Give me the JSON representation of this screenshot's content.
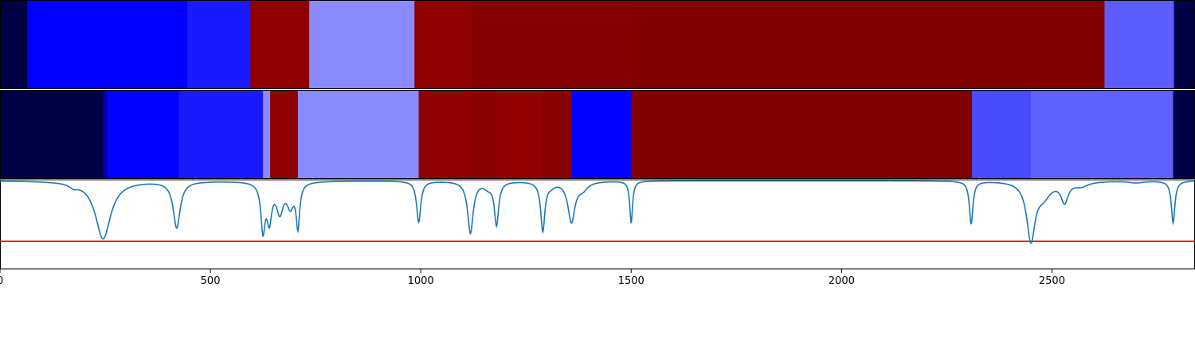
{
  "chart_data": [
    {
      "type": "heatmap",
      "panel": "top-band",
      "xlim": [
        0,
        2840
      ],
      "segments": [
        {
          "start": 0,
          "end": 65,
          "color": "#000044"
        },
        {
          "start": 65,
          "end": 445,
          "color": "#0000ff"
        },
        {
          "start": 445,
          "end": 595,
          "color": "#1a1aff"
        },
        {
          "start": 595,
          "end": 735,
          "color": "#8f0000"
        },
        {
          "start": 735,
          "end": 985,
          "color": "#8a8aff"
        },
        {
          "start": 985,
          "end": 1120,
          "color": "#8f0000"
        },
        {
          "start": 1120,
          "end": 1500,
          "color": "#850000"
        },
        {
          "start": 1500,
          "end": 2625,
          "color": "#800000"
        },
        {
          "start": 2625,
          "end": 2790,
          "color": "#5c5cff"
        },
        {
          "start": 2790,
          "end": 2840,
          "color": "#000044"
        }
      ]
    },
    {
      "type": "heatmap",
      "panel": "middle-band",
      "xlim": [
        0,
        2840
      ],
      "segments": [
        {
          "start": 0,
          "end": 245,
          "color": "#000044"
        },
        {
          "start": 245,
          "end": 255,
          "color": "#0000aa"
        },
        {
          "start": 255,
          "end": 425,
          "color": "#0000ff"
        },
        {
          "start": 425,
          "end": 625,
          "color": "#1a1aff"
        },
        {
          "start": 625,
          "end": 642,
          "color": "#8a8aff"
        },
        {
          "start": 642,
          "end": 708,
          "color": "#8f0000"
        },
        {
          "start": 708,
          "end": 995,
          "color": "#8a8aff"
        },
        {
          "start": 995,
          "end": 1118,
          "color": "#8f0000"
        },
        {
          "start": 1118,
          "end": 1180,
          "color": "#880000"
        },
        {
          "start": 1180,
          "end": 1290,
          "color": "#930000"
        },
        {
          "start": 1290,
          "end": 1358,
          "color": "#880000"
        },
        {
          "start": 1358,
          "end": 1500,
          "color": "#0000ff"
        },
        {
          "start": 1500,
          "end": 2310,
          "color": "#800000"
        },
        {
          "start": 2310,
          "end": 2450,
          "color": "#4a4aff"
        },
        {
          "start": 2450,
          "end": 2788,
          "color": "#6060ff"
        },
        {
          "start": 2788,
          "end": 2840,
          "color": "#000044"
        }
      ]
    },
    {
      "type": "line",
      "panel": "bottom-plot",
      "xlim": [
        0,
        2840
      ],
      "ylim": [
        0,
        1
      ],
      "xticks": [
        0,
        500,
        1000,
        1500,
        2000,
        2500
      ],
      "xtick_labels": [
        "0",
        "500",
        "1000",
        "1500",
        "2000",
        "2500"
      ],
      "baseline": 0.99,
      "threshold": {
        "value": 0.31,
        "color": "#e8000b"
      },
      "series_color": "#1f77b4",
      "dips": [
        {
          "center": 245,
          "depth": 0.65,
          "width": 22
        },
        {
          "center": 175,
          "depth": 0.04,
          "width": 12
        },
        {
          "center": 420,
          "depth": 0.52,
          "width": 10
        },
        {
          "center": 625,
          "depth": 0.52,
          "width": 6
        },
        {
          "center": 640,
          "depth": 0.4,
          "width": 7
        },
        {
          "center": 665,
          "depth": 0.32,
          "width": 10
        },
        {
          "center": 690,
          "depth": 0.25,
          "width": 10
        },
        {
          "center": 708,
          "depth": 0.48,
          "width": 5
        },
        {
          "center": 995,
          "depth": 0.46,
          "width": 6
        },
        {
          "center": 1118,
          "depth": 0.58,
          "width": 8
        },
        {
          "center": 1160,
          "depth": 0.06,
          "width": 12
        },
        {
          "center": 1180,
          "depth": 0.48,
          "width": 6
        },
        {
          "center": 1290,
          "depth": 0.55,
          "width": 6
        },
        {
          "center": 1310,
          "depth": 0.04,
          "width": 10
        },
        {
          "center": 1358,
          "depth": 0.45,
          "width": 10
        },
        {
          "center": 1385,
          "depth": 0.08,
          "width": 14
        },
        {
          "center": 1500,
          "depth": 0.47,
          "width": 4
        },
        {
          "center": 2308,
          "depth": 0.48,
          "width": 5
        },
        {
          "center": 2450,
          "depth": 0.65,
          "width": 12
        },
        {
          "center": 2480,
          "depth": 0.15,
          "width": 20
        },
        {
          "center": 2530,
          "depth": 0.22,
          "width": 10
        },
        {
          "center": 2570,
          "depth": 0.05,
          "width": 20
        },
        {
          "center": 2700,
          "depth": 0.02,
          "width": 20
        },
        {
          "center": 2788,
          "depth": 0.47,
          "width": 5
        }
      ]
    }
  ]
}
